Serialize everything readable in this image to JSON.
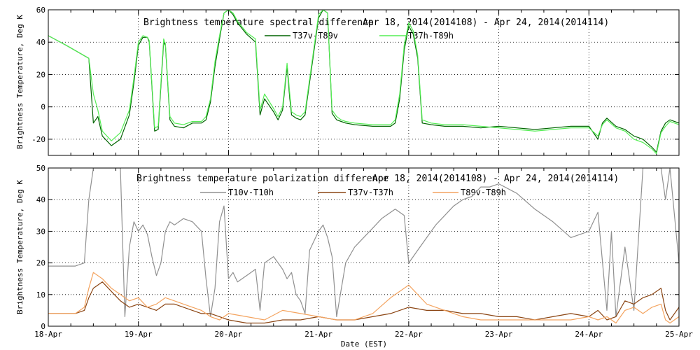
{
  "chart_data": [
    {
      "type": "line",
      "title": "Brightness temperature spectral difference",
      "date_range": "Apr 18, 2014(2014108) - Apr 24, 2014(2014114)",
      "ylabel": "Brightness Temperature, Deg K",
      "ylim": [
        -30,
        60
      ],
      "yticks": [
        "60",
        "40",
        "20",
        "0",
        "-20"
      ],
      "xlim_days": [
        18,
        25
      ],
      "grid": true,
      "legend_position": "top-center",
      "series": [
        {
          "name": "T37v-T89v",
          "color": "#006400",
          "x": [
            18.0,
            18.2,
            18.45,
            18.5,
            18.55,
            18.6,
            18.7,
            18.8,
            18.9,
            18.95,
            19.0,
            19.05,
            19.1,
            19.12,
            19.18,
            19.22,
            19.28,
            19.3,
            19.35,
            19.4,
            19.5,
            19.6,
            19.7,
            19.75,
            19.8,
            19.85,
            19.9,
            19.95,
            20.0,
            20.05,
            20.1,
            20.2,
            20.3,
            20.35,
            20.4,
            20.5,
            20.55,
            20.6,
            20.65,
            20.68,
            20.7,
            20.75,
            20.8,
            20.85,
            21.0,
            21.05,
            21.1,
            21.15,
            21.2,
            21.25,
            21.3,
            21.4,
            21.6,
            21.8,
            21.85,
            21.9,
            21.95,
            22.0,
            22.05,
            22.1,
            22.15,
            22.25,
            22.4,
            22.6,
            22.8,
            23.0,
            23.2,
            23.4,
            23.6,
            23.8,
            24.0,
            24.1,
            24.15,
            24.2,
            24.3,
            24.4,
            24.5,
            24.6,
            24.7,
            24.75,
            24.8,
            24.85,
            24.9,
            25.0
          ],
          "y": [
            44,
            38,
            30,
            -10,
            -6,
            -18,
            -24,
            -20,
            -5,
            15,
            38,
            43,
            43,
            40,
            -15,
            -14,
            40,
            38,
            -8,
            -12,
            -13,
            -10,
            -10,
            -8,
            3,
            25,
            42,
            58,
            60,
            57,
            52,
            45,
            40,
            -5,
            5,
            -3,
            -8,
            -2,
            25,
            5,
            -5,
            -7,
            -8,
            -5,
            55,
            60,
            58,
            -4,
            -8,
            -9,
            -10,
            -11,
            -12,
            -12,
            -10,
            5,
            35,
            50,
            45,
            30,
            -10,
            -11,
            -12,
            -12,
            -13,
            -12,
            -13,
            -14,
            -13,
            -12,
            -12,
            -20,
            -10,
            -7,
            -12,
            -14,
            -18,
            -20,
            -25,
            -28,
            -15,
            -10,
            -8,
            -10
          ]
        },
        {
          "name": "T37h-T89h",
          "color": "#55ee55",
          "x": [
            18.0,
            18.2,
            18.45,
            18.5,
            18.55,
            18.6,
            18.7,
            18.8,
            18.9,
            18.95,
            19.0,
            19.05,
            19.1,
            19.12,
            19.18,
            19.22,
            19.28,
            19.3,
            19.35,
            19.4,
            19.5,
            19.6,
            19.7,
            19.75,
            19.8,
            19.85,
            19.9,
            19.95,
            20.0,
            20.05,
            20.1,
            20.2,
            20.3,
            20.35,
            20.4,
            20.5,
            20.55,
            20.6,
            20.65,
            20.68,
            20.7,
            20.75,
            20.8,
            20.85,
            21.0,
            21.05,
            21.1,
            21.15,
            21.2,
            21.25,
            21.3,
            21.4,
            21.6,
            21.8,
            21.85,
            21.9,
            21.95,
            22.0,
            22.05,
            22.1,
            22.15,
            22.25,
            22.4,
            22.6,
            22.8,
            23.0,
            23.2,
            23.4,
            23.6,
            23.8,
            24.0,
            24.1,
            24.15,
            24.2,
            24.3,
            24.4,
            24.5,
            24.6,
            24.7,
            24.75,
            24.8,
            24.85,
            24.9,
            25.0
          ],
          "y": [
            44,
            38,
            30,
            8,
            -2,
            -15,
            -21,
            -16,
            -2,
            18,
            40,
            44,
            43,
            41,
            -13,
            -12,
            42,
            39,
            -6,
            -10,
            -11,
            -9,
            -9,
            -6,
            5,
            28,
            44,
            58,
            60,
            58,
            53,
            46,
            42,
            -2,
            8,
            -1,
            -6,
            0,
            27,
            8,
            -3,
            -5,
            -6,
            -3,
            57,
            60,
            58,
            -2,
            -6,
            -8,
            -9,
            -10,
            -11,
            -11,
            -8,
            8,
            38,
            52,
            47,
            32,
            -8,
            -10,
            -11,
            -11,
            -12,
            -13,
            -14,
            -15,
            -14,
            -13,
            -13,
            -18,
            -11,
            -8,
            -13,
            -15,
            -20,
            -22,
            -26,
            -29,
            -16,
            -12,
            -9,
            -11
          ]
        }
      ]
    },
    {
      "type": "line",
      "title": "Brightness temperature polarization difference",
      "date_range": "Apr 18, 2014(2014108) - Apr 24, 2014(2014114)",
      "ylabel": "Brightness Temperature, Deg K",
      "xlabel": "Date (EST)",
      "ylim": [
        0,
        50
      ],
      "yticks": [
        "50",
        "40",
        "30",
        "20",
        "10",
        "0"
      ],
      "xlim_days": [
        18,
        25
      ],
      "xticks": [
        "18-Apr",
        "19-Apr",
        "20-Apr",
        "21-Apr",
        "22-Apr",
        "23-Apr",
        "24-Apr",
        "25-Apr"
      ],
      "grid": true,
      "legend_position": "top-center",
      "series": [
        {
          "name": "T10v-T10h",
          "color": "#909090",
          "x": [
            18.0,
            18.3,
            18.4,
            18.45,
            18.5,
            18.55,
            18.6,
            18.8,
            18.85,
            18.9,
            18.95,
            19.0,
            19.05,
            19.1,
            19.15,
            19.2,
            19.25,
            19.3,
            19.35,
            19.4,
            19.5,
            19.6,
            19.7,
            19.75,
            19.8,
            19.85,
            19.9,
            19.95,
            20.0,
            20.05,
            20.1,
            20.2,
            20.3,
            20.35,
            20.4,
            20.5,
            20.6,
            20.65,
            20.7,
            20.75,
            20.8,
            20.85,
            20.9,
            21.0,
            21.05,
            21.1,
            21.15,
            21.2,
            21.3,
            21.4,
            21.5,
            21.6,
            21.7,
            21.8,
            21.85,
            21.9,
            21.95,
            22.0,
            22.05,
            22.1,
            22.2,
            22.3,
            22.4,
            22.5,
            22.6,
            22.7,
            22.8,
            22.9,
            23.0,
            23.2,
            23.4,
            23.6,
            23.8,
            24.0,
            24.05,
            24.1,
            24.2,
            24.25,
            24.3,
            24.4,
            24.5,
            24.6,
            24.7,
            24.75,
            24.8,
            24.85,
            24.9,
            25.0
          ],
          "y": [
            19,
            19,
            20,
            40,
            50,
            50,
            50,
            50,
            3,
            25,
            33,
            30,
            32,
            29,
            22,
            16,
            20,
            30,
            33,
            32,
            34,
            33,
            30,
            15,
            3,
            12,
            33,
            38,
            15,
            17,
            14,
            16,
            18,
            5,
            20,
            22,
            18,
            15,
            17,
            10,
            8,
            4,
            24,
            30,
            32,
            28,
            22,
            3,
            20,
            25,
            28,
            31,
            34,
            36,
            37,
            36,
            35,
            20,
            22,
            24,
            28,
            32,
            35,
            38,
            40,
            41,
            44,
            44,
            45,
            42,
            37,
            33,
            28,
            30,
            33,
            36,
            5,
            30,
            3,
            25,
            5,
            50,
            50,
            50,
            50,
            40,
            50,
            20
          ]
        },
        {
          "name": "T37v-T37h",
          "color": "#8b4513",
          "x": [
            18.0,
            18.3,
            18.4,
            18.45,
            18.5,
            18.6,
            18.7,
            18.8,
            18.9,
            19.0,
            19.1,
            19.2,
            19.3,
            19.4,
            19.5,
            19.6,
            19.7,
            19.8,
            19.9,
            20.0,
            20.2,
            20.4,
            20.6,
            20.8,
            21.0,
            21.2,
            21.4,
            21.6,
            21.8,
            22.0,
            22.2,
            22.4,
            22.6,
            22.8,
            23.0,
            23.2,
            23.4,
            23.6,
            23.8,
            24.0,
            24.1,
            24.2,
            24.3,
            24.4,
            24.5,
            24.6,
            24.7,
            24.8,
            24.85,
            24.9,
            25.0
          ],
          "y": [
            4,
            4,
            5,
            9,
            12,
            14,
            11,
            8,
            6,
            7,
            6,
            5,
            7,
            7,
            6,
            5,
            4,
            4,
            3,
            2,
            1,
            1,
            2,
            2,
            3,
            2,
            2,
            3,
            4,
            6,
            5,
            5,
            4,
            4,
            3,
            3,
            2,
            3,
            4,
            3,
            5,
            2,
            3,
            8,
            7,
            9,
            10,
            12,
            5,
            2,
            6
          ]
        },
        {
          "name": "T89v-T89h",
          "color": "#f4a460",
          "x": [
            18.0,
            18.3,
            18.4,
            18.45,
            18.5,
            18.6,
            18.7,
            18.8,
            18.9,
            19.0,
            19.1,
            19.2,
            19.3,
            19.4,
            19.5,
            19.6,
            19.7,
            19.8,
            19.9,
            20.0,
            20.2,
            20.4,
            20.6,
            20.8,
            21.0,
            21.2,
            21.4,
            21.6,
            21.8,
            22.0,
            22.2,
            22.4,
            22.6,
            22.8,
            23.0,
            23.2,
            23.4,
            23.6,
            23.8,
            24.0,
            24.1,
            24.2,
            24.3,
            24.4,
            24.5,
            24.6,
            24.7,
            24.8,
            24.85,
            24.9,
            25.0
          ],
          "y": [
            4,
            4,
            6,
            12,
            17,
            15,
            12,
            10,
            8,
            9,
            6,
            7,
            9,
            8,
            7,
            6,
            5,
            3,
            2,
            4,
            3,
            2,
            5,
            4,
            3,
            2,
            2,
            4,
            9,
            13,
            7,
            5,
            3,
            2,
            2,
            2,
            2,
            2,
            2,
            3,
            2,
            3,
            1,
            5,
            6,
            4,
            6,
            7,
            2,
            1,
            3
          ]
        }
      ]
    }
  ]
}
